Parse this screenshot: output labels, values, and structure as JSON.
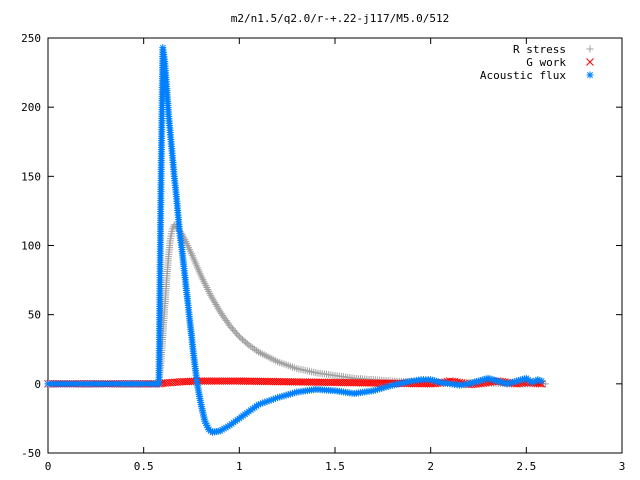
{
  "chart_data": {
    "type": "scatter",
    "title": "m2/n1.5/q2.0/r-+.22-j117/M5.0/512",
    "xlabel": "",
    "ylabel": "",
    "xlim": [
      0,
      3
    ],
    "ylim": [
      -50,
      250
    ],
    "grid": false,
    "legend_position": "top-right",
    "x_ticks": [
      {
        "value": 0,
        "label": "0"
      },
      {
        "value": 0.5,
        "label": "0.5"
      },
      {
        "value": 1,
        "label": "1"
      },
      {
        "value": 1.5,
        "label": "1.5"
      },
      {
        "value": 2,
        "label": "2"
      },
      {
        "value": 2.5,
        "label": "2.5"
      },
      {
        "value": 3,
        "label": "3"
      }
    ],
    "y_ticks": [
      {
        "value": -50,
        "label": "-50"
      },
      {
        "value": 0,
        "label": "0"
      },
      {
        "value": 50,
        "label": "50"
      },
      {
        "value": 100,
        "label": "100"
      },
      {
        "value": 150,
        "label": "150"
      },
      {
        "value": 200,
        "label": "200"
      },
      {
        "value": 250,
        "label": "250"
      }
    ],
    "series": [
      {
        "name": "R stress",
        "marker": "plus",
        "color": "#a0a0a0",
        "x": [
          0.0,
          0.1,
          0.2,
          0.3,
          0.4,
          0.5,
          0.58,
          0.59,
          0.6,
          0.61,
          0.62,
          0.63,
          0.64,
          0.65,
          0.66,
          0.67,
          0.68,
          0.69,
          0.7,
          0.72,
          0.75,
          0.8,
          0.85,
          0.9,
          0.95,
          1.0,
          1.05,
          1.1,
          1.2,
          1.3,
          1.4,
          1.5,
          1.6,
          1.7,
          1.8,
          2.0,
          2.2,
          2.4,
          2.6
        ],
        "y": [
          0,
          0,
          0,
          0,
          0,
          0,
          0,
          15,
          35,
          55,
          75,
          92,
          105,
          112,
          115,
          114,
          112,
          110,
          108,
          103,
          94,
          78,
          64,
          52,
          42,
          34,
          28,
          23,
          16,
          11,
          8,
          6,
          4,
          3,
          2,
          1,
          1,
          0,
          0
        ]
      },
      {
        "name": "G work",
        "marker": "cross",
        "color": "#ff0000",
        "x": [
          0.0,
          0.2,
          0.4,
          0.58,
          0.6,
          0.65,
          0.7,
          0.8,
          0.9,
          1.0,
          1.1,
          1.2,
          1.3,
          1.4,
          1.5,
          1.6,
          1.7,
          1.8,
          1.9,
          2.0,
          2.05,
          2.1,
          2.15,
          2.2,
          2.25,
          2.3,
          2.35,
          2.4,
          2.45,
          2.5,
          2.55,
          2.58
        ],
        "y": [
          0,
          0,
          0,
          0,
          0.5,
          1,
          1.5,
          2,
          2,
          2,
          1.8,
          1.6,
          1.4,
          1.2,
          1,
          0.8,
          0.6,
          0.4,
          0.2,
          0,
          0.5,
          2,
          1,
          -0.5,
          0,
          1,
          2,
          1,
          0,
          1,
          0.5,
          0
        ]
      },
      {
        "name": "Acoustic flux",
        "marker": "star",
        "color": "#0080ff",
        "x": [
          0.0,
          0.1,
          0.2,
          0.3,
          0.4,
          0.5,
          0.55,
          0.58,
          0.59,
          0.6,
          0.61,
          0.62,
          0.63,
          0.64,
          0.65,
          0.66,
          0.67,
          0.68,
          0.69,
          0.7,
          0.71,
          0.72,
          0.73,
          0.74,
          0.75,
          0.76,
          0.78,
          0.8,
          0.82,
          0.84,
          0.86,
          0.9,
          0.95,
          1.0,
          1.05,
          1.1,
          1.2,
          1.3,
          1.4,
          1.5,
          1.6,
          1.7,
          1.8,
          1.9,
          1.95,
          2.0,
          2.05,
          2.1,
          2.15,
          2.2,
          2.25,
          2.3,
          2.35,
          2.4,
          2.45,
          2.5,
          2.53,
          2.56,
          2.58
        ],
        "y": [
          0,
          0,
          0,
          0,
          0,
          0,
          0,
          0,
          139,
          243,
          233,
          215,
          195,
          180,
          165,
          150,
          137,
          122,
          107,
          97,
          85,
          72,
          60,
          47,
          35,
          22,
          0,
          -15,
          -27,
          -33,
          -35,
          -34,
          -30,
          -25,
          -20,
          -15,
          -10,
          -6,
          -4,
          -5,
          -7,
          -5,
          -1,
          2,
          3,
          3,
          1,
          0,
          -1,
          0,
          2,
          4,
          2,
          0,
          2,
          4,
          1,
          3,
          2
        ]
      }
    ]
  }
}
